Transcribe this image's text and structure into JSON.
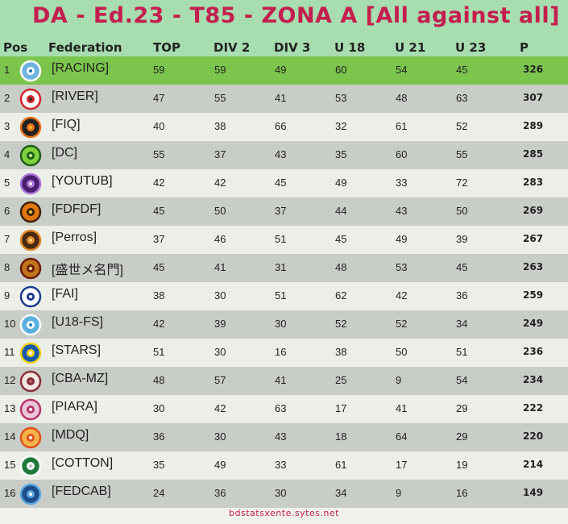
{
  "title": "DA - Ed.23 - T85 - ZONA A  [All against all]",
  "columns": {
    "pos": "Pos",
    "federation": "Federation",
    "top": "TOP",
    "div2": "DIV 2",
    "div3": "DIV 3",
    "u18": "U 18",
    "u21": "U 21",
    "u23": "U 23",
    "p": "P"
  },
  "rows": [
    {
      "pos": "1",
      "federation": "[RACING]",
      "top": "59",
      "div2": "59",
      "div3": "49",
      "u18": "60",
      "u21": "54",
      "u23": "45",
      "p": "326",
      "logo": "racing-crest-icon"
    },
    {
      "pos": "2",
      "federation": "[RIVER]",
      "top": "47",
      "div2": "55",
      "div3": "41",
      "u18": "53",
      "u21": "48",
      "u23": "63",
      "p": "307",
      "logo": "river-crest-icon"
    },
    {
      "pos": "3",
      "federation": "[FIQ]",
      "top": "40",
      "div2": "38",
      "div3": "66",
      "u18": "32",
      "u21": "61",
      "u23": "52",
      "p": "289",
      "logo": "fiq-crest-icon"
    },
    {
      "pos": "4",
      "federation": "[DC]",
      "top": "55",
      "div2": "37",
      "div3": "43",
      "u18": "35",
      "u21": "60",
      "u23": "55",
      "p": "285",
      "logo": "dc-crest-icon"
    },
    {
      "pos": "5",
      "federation": "[YOUTUB]",
      "top": "42",
      "div2": "42",
      "div3": "45",
      "u18": "49",
      "u21": "33",
      "u23": "72",
      "p": "283",
      "logo": "youtub-crest-icon"
    },
    {
      "pos": "6",
      "federation": "[FDFDF]",
      "top": "45",
      "div2": "50",
      "div3": "37",
      "u18": "44",
      "u21": "43",
      "u23": "50",
      "p": "269",
      "logo": "fdfdf-crest-icon"
    },
    {
      "pos": "7",
      "federation": "[Perros]",
      "top": "37",
      "div2": "46",
      "div3": "51",
      "u18": "45",
      "u21": "49",
      "u23": "39",
      "p": "267",
      "logo": "perros-crest-icon"
    },
    {
      "pos": "8",
      "federation": "[盛世メ名門]",
      "top": "45",
      "div2": "41",
      "div3": "31",
      "u18": "48",
      "u21": "53",
      "u23": "45",
      "p": "263",
      "logo": "mingmen-crest-icon"
    },
    {
      "pos": "9",
      "federation": "[FAI]",
      "top": "38",
      "div2": "30",
      "div3": "51",
      "u18": "62",
      "u21": "42",
      "u23": "36",
      "p": "259",
      "logo": "fai-crest-icon"
    },
    {
      "pos": "10",
      "federation": "[U18-FS]",
      "top": "42",
      "div2": "39",
      "div3": "30",
      "u18": "52",
      "u21": "52",
      "u23": "34",
      "p": "249",
      "logo": "u18fs-crest-icon"
    },
    {
      "pos": "11",
      "federation": "[STARS]",
      "top": "51",
      "div2": "30",
      "div3": "16",
      "u18": "38",
      "u21": "50",
      "u23": "51",
      "p": "236",
      "logo": "stars-crest-icon"
    },
    {
      "pos": "12",
      "federation": "[CBA-MZ]",
      "top": "48",
      "div2": "57",
      "div3": "41",
      "u18": "25",
      "u21": "9",
      "u23": "54",
      "p": "234",
      "logo": "cbamz-crest-icon"
    },
    {
      "pos": "13",
      "federation": "[PIARA]",
      "top": "30",
      "div2": "42",
      "div3": "63",
      "u18": "17",
      "u21": "41",
      "u23": "29",
      "p": "222",
      "logo": "piara-crest-icon"
    },
    {
      "pos": "14",
      "federation": "[MDQ]",
      "top": "36",
      "div2": "30",
      "div3": "43",
      "u18": "18",
      "u21": "64",
      "u23": "29",
      "p": "220",
      "logo": "mdq-crest-icon"
    },
    {
      "pos": "15",
      "federation": "[COTTON]",
      "top": "35",
      "div2": "49",
      "div3": "33",
      "u18": "61",
      "u21": "17",
      "u23": "19",
      "p": "214",
      "logo": "cotton-crest-icon"
    },
    {
      "pos": "16",
      "federation": "[FEDCAB]",
      "top": "24",
      "div2": "36",
      "div3": "30",
      "u18": "34",
      "u21": "9",
      "u23": "16",
      "p": "149",
      "logo": "fedcab-crest-icon"
    }
  ],
  "footer": "bdstatsxente.sytes.net",
  "colors": {
    "title": "#c41e4e",
    "header_bg": "#a7ddb0",
    "leader_row": "#7cc54d",
    "row_dark": "#c9cdc7",
    "row_light": "#eceee8"
  }
}
